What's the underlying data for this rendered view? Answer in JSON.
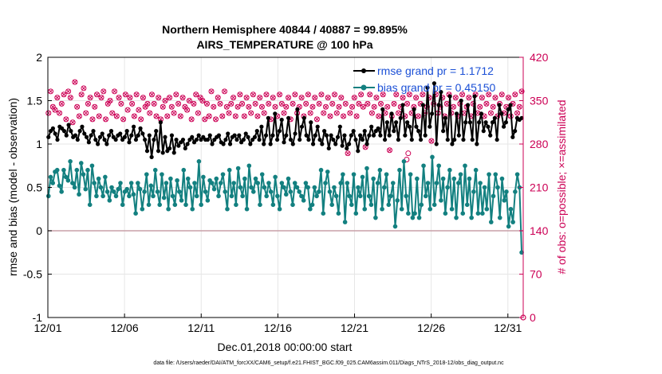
{
  "chart_data": {
    "type": "line",
    "title_line1": "Northern Hemisphere 40844 / 40887 = 99.895%",
    "title_line2": "AIRS_TEMPERATURE @ 100 hPa",
    "xlabel": "Dec.01,2018 00:00:00 start",
    "ylabel": "rmse and bias (model - observation)",
    "ylabel_right": "# of obs: o=possible; ×=assimilated",
    "footer": "data file: /Users/raeder/DAI/ATM_forcXX/CAM6_setup/f.e21.FHIST_BGC.f09_025.CAM6assim.011/Diags_NTrS_2018-12/obs_diag_output.nc",
    "x_tick_labels": [
      "12/01",
      "12/06",
      "12/11",
      "12/16",
      "12/21",
      "12/26",
      "12/31"
    ],
    "x_tick_days": [
      0,
      5,
      10,
      15,
      20,
      25,
      30
    ],
    "xlim": [
      0,
      31
    ],
    "ylim": [
      -1,
      2
    ],
    "y_tick_labels": [
      "-1",
      "-0.5",
      "0",
      "0.5",
      "1",
      "1.5",
      "2"
    ],
    "y_ticks": [
      -1,
      -0.5,
      0,
      0.5,
      1,
      1.5,
      2
    ],
    "ylim_right": [
      0,
      420
    ],
    "y2_tick_labels": [
      "0",
      "70",
      "140",
      "210",
      "280",
      "350",
      "420"
    ],
    "y2_ticks": [
      0,
      70,
      140,
      210,
      280,
      350,
      420
    ],
    "grid": true,
    "legend_position": "top-right",
    "colors": {
      "rmse": "#000000",
      "bias": "#138080",
      "obs": "#cc0055",
      "zero_line": "#c8a0a8",
      "right_axis": "#cc0055",
      "legend_text": "#1a4fd6"
    },
    "series": [
      {
        "name": "rmse grand pr = 1.1712",
        "values": [
          1.08,
          1.15,
          1.18,
          1.12,
          1.05,
          1.2,
          1.18,
          1.15,
          1.1,
          1.22,
          1.15,
          1.08,
          1.1,
          1.05,
          1.15,
          1.2,
          1.12,
          1.08,
          1.02,
          1.1,
          1.15,
          1.05,
          1.0,
          1.08,
          1.12,
          1.05,
          1.0,
          1.1,
          1.15,
          1.08,
          1.05,
          1.1,
          1.12,
          1.05,
          1.08,
          1.15,
          1.02,
          1.1,
          1.2,
          1.05,
          1.1,
          1.18,
          1.12,
          1.05,
          0.92,
          1.1,
          0.85,
          1.05,
          1.15,
          0.92,
          1.25,
          0.9,
          1.08,
          0.92,
          0.95,
          1.1,
          0.9,
          1.05,
          0.98,
          1.02,
          1.05,
          0.95,
          1.0,
          1.05,
          1.08,
          1.02,
          1.05,
          1.1,
          1.05,
          1.08,
          1.05,
          1.05,
          1.1,
          1.0,
          1.05,
          1.08,
          1.1,
          1.02,
          1.0,
          1.05,
          1.12,
          1.0,
          1.08,
          1.1,
          1.05,
          1.1,
          1.02,
          1.05,
          1.12,
          1.08,
          1.0,
          1.05,
          1.08,
          1.15,
          1.05,
          1.2,
          1.0,
          1.1,
          1.3,
          1.0,
          1.1,
          1.35,
          1.05,
          1.15,
          1.28,
          1.02,
          1.1,
          1.3,
          1.05,
          1.0,
          1.12,
          1.4,
          1.05,
          1.2,
          1.3,
          1.1,
          1.05,
          1.25,
          1.0,
          1.1,
          1.2,
          1.05,
          1.0,
          1.15,
          1.1,
          0.95,
          1.1,
          1.05,
          1.0,
          1.08,
          1.2,
          0.98,
          1.1,
          0.95,
          1.0,
          1.1,
          1.15,
          1.05,
          0.92,
          1.1,
          1.05,
          1.15,
          1.0,
          1.1,
          1.2,
          1.1,
          1.15,
          1.18,
          1.1,
          1.4,
          1.05,
          1.25,
          1.1,
          1.35,
          1.15,
          1.25,
          1.05,
          1.3,
          1.45,
          1.1,
          1.25,
          1.2,
          1.05,
          1.4,
          1.2,
          1.15,
          1.05,
          1.45,
          1.1,
          1.65,
          1.2,
          1.35,
          1.7,
          1.0,
          1.45,
          1.6,
          1.15,
          1.3,
          1.05,
          1.55,
          1.0,
          1.05,
          1.35,
          1.1,
          1.5,
          1.05,
          1.25,
          1.45,
          1.25,
          1.05,
          1.55,
          1.0,
          1.25,
          1.35,
          1.15,
          1.25,
          1.2,
          1.1,
          1.25,
          1.3,
          1.05,
          1.45,
          1.35,
          1.2,
          1.25,
          1.4,
          1.45,
          1.08,
          1.15,
          1.3,
          1.28,
          1.3
        ]
      },
      {
        "name": "bias grand pr = 0.45150",
        "values": [
          0.4,
          0.62,
          0.55,
          0.68,
          0.7,
          0.52,
          0.45,
          0.7,
          0.62,
          0.58,
          0.8,
          0.55,
          0.5,
          0.7,
          0.42,
          0.78,
          0.65,
          0.48,
          0.7,
          0.3,
          0.75,
          0.55,
          0.4,
          0.6,
          0.5,
          0.4,
          0.62,
          0.45,
          0.35,
          0.5,
          0.45,
          0.4,
          0.48,
          0.55,
          0.3,
          0.45,
          0.48,
          0.4,
          0.55,
          0.42,
          0.2,
          0.55,
          0.48,
          0.25,
          0.45,
          0.65,
          0.3,
          0.52,
          0.4,
          0.7,
          0.45,
          0.3,
          0.65,
          0.38,
          0.55,
          0.25,
          0.6,
          0.4,
          0.3,
          0.58,
          0.45,
          0.35,
          0.7,
          0.3,
          0.6,
          0.5,
          0.25,
          0.55,
          0.4,
          0.8,
          0.3,
          0.62,
          0.45,
          0.35,
          0.58,
          0.55,
          0.48,
          0.6,
          0.4,
          0.55,
          0.65,
          0.45,
          0.25,
          0.7,
          0.4,
          0.55,
          0.3,
          0.72,
          0.5,
          0.4,
          0.6,
          0.25,
          0.75,
          0.5,
          0.45,
          0.6,
          0.55,
          0.3,
          0.65,
          0.5,
          0.4,
          0.55,
          0.45,
          0.3,
          0.62,
          0.4,
          0.25,
          0.55,
          0.5,
          0.42,
          0.6,
          0.45,
          0.3,
          0.55,
          0.5,
          0.45,
          0.4,
          0.35,
          0.55,
          0.5,
          0.25,
          0.3,
          0.5,
          0.4,
          0.45,
          0.7,
          0.2,
          0.55,
          0.68,
          0.45,
          0.3,
          0.5,
          0.4,
          0.2,
          0.55,
          0.65,
          0.1,
          0.55,
          0.4,
          0.3,
          0.65,
          0.2,
          0.5,
          0.4,
          0.62,
          0.25,
          0.72,
          0.4,
          0.3,
          0.6,
          0.15,
          0.55,
          0.7,
          0.25,
          0.5,
          0.65,
          0.3,
          0.4,
          0.55,
          0.05,
          0.35,
          0.7,
          0.25,
          0.8,
          0.4,
          0.2,
          0.65,
          0.15,
          0.2,
          0.6,
          0.15,
          0.3,
          0.75,
          0.4,
          0.55,
          0.25,
          0.85,
          0.3,
          0.55,
          0.75,
          0.35,
          0.6,
          0.2,
          0.5,
          0.7,
          0.25,
          0.6,
          0.15,
          0.55,
          0.65,
          0.2,
          0.75,
          0.3,
          0.6,
          0.15,
          0.45,
          0.7,
          0.2,
          0.55,
          0.2,
          0.5,
          0.25,
          0.65,
          0.1,
          0.4,
          0.65,
          0.5,
          0.15,
          0.6,
          0.35,
          0.45,
          0.05,
          0.25,
          0.1,
          0.45,
          0.65,
          0.5,
          -0.25
        ]
      },
      {
        "name": "obs possible / assimilated",
        "values": [
          330,
          365,
          340,
          335,
          355,
          330,
          345,
          360,
          320,
          365,
          355,
          315,
          380,
          340,
          325,
          360,
          370,
          330,
          345,
          355,
          320,
          340,
          360,
          325,
          355,
          365,
          320,
          345,
          350,
          330,
          365,
          325,
          355,
          345,
          320,
          360,
          335,
          355,
          345,
          325,
          360,
          335,
          320,
          355,
          340,
          345,
          330,
          360,
          345,
          325,
          355,
          320,
          340,
          350,
          325,
          355,
          340,
          330,
          360,
          345,
          325,
          355,
          340,
          335,
          350,
          320,
          345,
          360,
          330,
          355,
          350,
          320,
          345,
          325,
          365,
          340,
          320,
          355,
          345,
          325,
          365,
          340,
          330,
          345,
          355,
          325,
          340,
          360,
          345,
          325,
          355,
          340,
          330,
          360,
          345,
          325,
          355,
          340,
          330,
          360,
          345,
          320,
          355,
          340,
          325,
          360,
          345,
          330,
          340,
          355,
          320,
          345,
          360,
          330,
          340,
          355,
          325,
          345,
          360,
          330,
          340,
          355,
          320,
          345,
          360,
          330,
          340,
          355,
          325,
          345,
          360,
          330,
          340,
          355,
          325,
          345,
          265,
          330,
          340,
          355,
          325,
          345,
          360,
          340,
          275,
          345,
          360,
          330,
          340,
          355,
          325,
          345,
          360,
          330,
          340,
          270,
          325,
          345,
          360,
          330,
          340,
          355,
          325,
          345,
          360,
          330,
          340,
          355,
          325,
          345,
          360,
          330,
          340,
          355,
          285,
          345,
          360,
          330,
          340,
          355,
          325,
          345,
          360,
          330,
          340,
          355,
          325,
          345,
          360,
          330,
          340,
          355,
          325,
          345,
          360,
          330,
          340,
          355,
          325,
          345,
          360,
          330,
          340,
          355,
          325,
          345,
          360,
          330,
          340,
          355,
          325,
          345,
          360,
          330,
          340,
          365
        ]
      }
    ],
    "final_obs_possible": 0,
    "special_obs_possible_points": [
      {
        "day": 23.5,
        "value": 265
      },
      {
        "day": 23.4,
        "value": 255
      }
    ]
  }
}
